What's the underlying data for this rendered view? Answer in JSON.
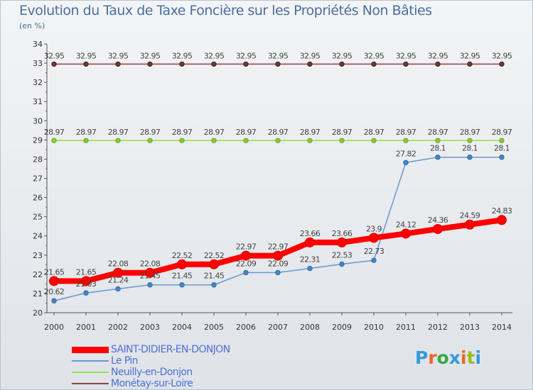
{
  "chart_data": {
    "type": "line",
    "title": "Evolution du Taux de Taxe Foncière sur les Propriétés Non Bâties",
    "ylabel": "(en %)",
    "xlabel": "",
    "ylim": [
      20,
      34
    ],
    "yticks": [
      "20",
      "21",
      "22",
      "23",
      "24",
      "25",
      "26",
      "27",
      "28",
      "29",
      "30",
      "31",
      "32",
      "33",
      "34"
    ],
    "x": [
      "2000",
      "2001",
      "2002",
      "2003",
      "2004",
      "2005",
      "2006",
      "2007",
      "2008",
      "2009",
      "2010",
      "2011",
      "2012",
      "2013",
      "2014"
    ],
    "series": [
      {
        "name": "SAINT-DIDIER-EN-DONJON",
        "color": "#ff0000",
        "values": [
          21.65,
          21.65,
          22.08,
          22.08,
          22.52,
          22.52,
          22.97,
          22.97,
          23.66,
          23.66,
          23.9,
          24.12,
          24.36,
          24.59,
          24.83
        ],
        "labels": [
          "21.65",
          "21.65",
          "22.08",
          "22.08",
          "22.52",
          "22.52",
          "22.97",
          "22.97",
          "23.66",
          "23.66",
          "23.9",
          "24.12",
          "24.36",
          "24.59",
          "24.83"
        ]
      },
      {
        "name": "Le Pin",
        "color": "#6699cc",
        "values": [
          20.62,
          21.03,
          21.24,
          21.45,
          21.45,
          21.45,
          22.09,
          22.09,
          22.31,
          22.53,
          22.73,
          27.82,
          28.1,
          28.1,
          28.1
        ],
        "labels": [
          "20.62",
          "21.03",
          "21.24",
          "21.45",
          "21.45",
          "21.45",
          "22.09",
          "22.09",
          "22.31",
          "22.53",
          "22.73",
          "27.82",
          "28.1",
          "28.1",
          "28.1"
        ]
      },
      {
        "name": "Neuilly-en-Donjon",
        "color": "#99dd44",
        "values": [
          28.97,
          28.97,
          28.97,
          28.97,
          28.97,
          28.97,
          28.97,
          28.97,
          28.97,
          28.97,
          28.97,
          28.97,
          28.97,
          28.97,
          28.97
        ],
        "labels": [
          "28.97",
          "28.97",
          "28.97",
          "28.97",
          "28.97",
          "28.97",
          "28.97",
          "28.97",
          "28.97",
          "28.97",
          "28.97",
          "28.97",
          "28.97",
          "28.97",
          "28.97"
        ]
      },
      {
        "name": "Monétay-sur-Loire",
        "color": "#884444",
        "values": [
          32.95,
          32.95,
          32.95,
          32.95,
          32.95,
          32.95,
          32.95,
          32.95,
          32.95,
          32.95,
          32.95,
          32.95,
          32.95,
          32.95,
          32.95
        ],
        "labels": [
          "32.95",
          "32.95",
          "32.95",
          "32.95",
          "32.95",
          "32.95",
          "32.95",
          "32.95",
          "32.95",
          "32.95",
          "32.95",
          "32.95",
          "32.95",
          "32.95",
          "32.95"
        ]
      }
    ],
    "grid": false,
    "legend": "bottom-left"
  },
  "logo": {
    "text": "Proxiti",
    "letters": [
      "P",
      "r",
      "o",
      "x",
      "i",
      "t",
      "i"
    ],
    "colors": [
      "#3399dd",
      "#ee6622",
      "#33aa44",
      "#3399dd",
      "#ee6622",
      "#99bb22",
      "#3399dd"
    ]
  }
}
